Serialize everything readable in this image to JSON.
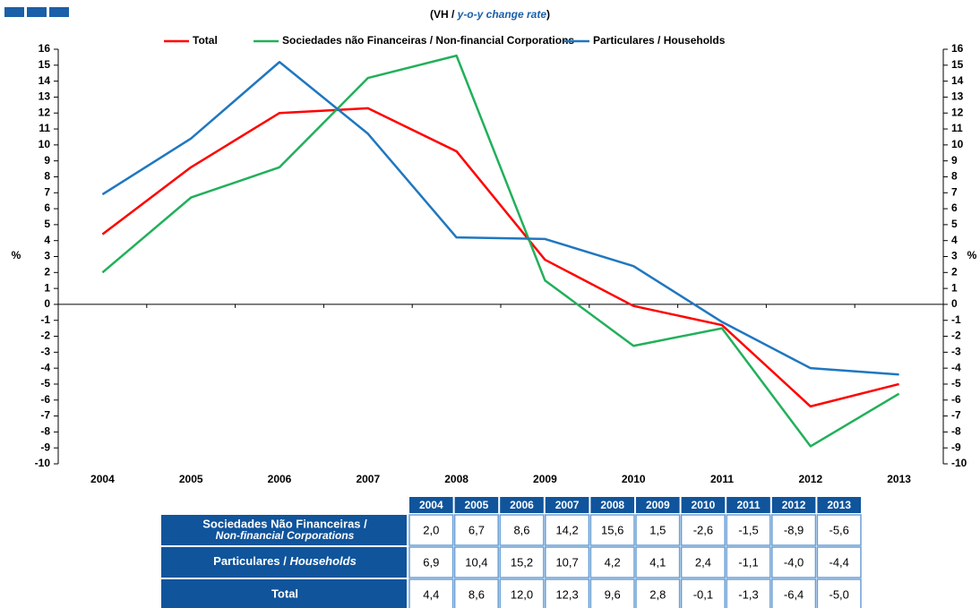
{
  "chart_data": {
    "type": "line",
    "title": [
      "(VH / ",
      "y-o-y change rate",
      ")"
    ],
    "ylabel": "%",
    "y2label": "%",
    "categories": [
      "2004",
      "2005",
      "2006",
      "2007",
      "2008",
      "2009",
      "2010",
      "2011",
      "2012",
      "2013"
    ],
    "series": [
      {
        "name": "Total",
        "color": "#ff0000",
        "table_label": [
          "Total"
        ],
        "values": [
          4.4,
          8.6,
          12.0,
          12.3,
          9.6,
          2.8,
          -0.1,
          -1.3,
          -6.4,
          -5.0
        ],
        "value_labels": [
          "4,4",
          "8,6",
          "12,0",
          "12,3",
          "9,6",
          "2,8",
          "-0,1",
          "-1,3",
          "-6,4",
          "-5,0"
        ]
      },
      {
        "name": "Sociedades não Financeiras / Non-financial Corporations",
        "color": "#21b05a",
        "table_label": [
          "Sociedades Não Financeiras /",
          "Non-financial Corporations"
        ],
        "values": [
          2.0,
          6.7,
          8.6,
          14.2,
          15.6,
          1.5,
          -2.6,
          -1.5,
          -8.9,
          -5.6
        ],
        "value_labels": [
          "2,0",
          "6,7",
          "8,6",
          "14,2",
          "15,6",
          "1,5",
          "-2,6",
          "-1,5",
          "-8,9",
          "-5,6"
        ]
      },
      {
        "name": "Particulares / Households",
        "color": "#1f77c0",
        "table_label": [
          "Particulares / ",
          "Households"
        ],
        "values": [
          6.9,
          10.4,
          15.2,
          10.7,
          4.2,
          4.1,
          2.4,
          -1.1,
          -4.0,
          -4.4
        ],
        "value_labels": [
          "6,9",
          "10,4",
          "15,2",
          "10,7",
          "4,2",
          "4,1",
          "2,4",
          "-1,1",
          "-4,0",
          "-4,4"
        ]
      }
    ],
    "ylim": [
      -10,
      16
    ],
    "yticks": [
      -10,
      -9,
      -8,
      -7,
      -6,
      -5,
      -4,
      -3,
      -2,
      -1,
      0,
      1,
      2,
      3,
      4,
      5,
      6,
      7,
      8,
      9,
      10,
      11,
      12,
      13,
      14,
      15,
      16
    ],
    "y2lim": [
      -10,
      16
    ],
    "y2ticks": [
      -10,
      -9,
      -8,
      -7,
      -6,
      -5,
      -4,
      -3,
      -2,
      -1,
      0,
      1,
      2,
      3,
      4,
      5,
      6,
      7,
      8,
      9,
      10,
      11,
      12,
      13,
      14,
      15,
      16
    ],
    "grid": false
  }
}
